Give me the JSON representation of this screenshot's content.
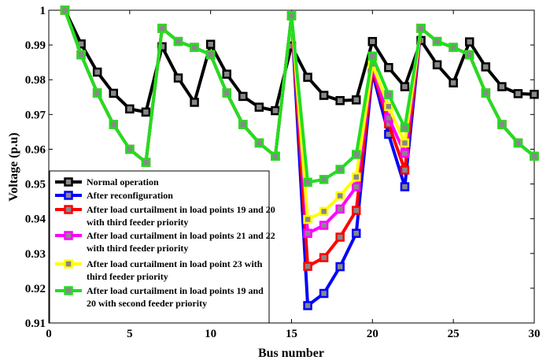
{
  "chart_data": {
    "type": "line",
    "title": "",
    "xlabel": "Bus number",
    "ylabel": "Voltage (p.u)",
    "xlim": [
      0,
      30
    ],
    "ylim": [
      0.91,
      1.0
    ],
    "xticks": [
      0,
      5,
      10,
      15,
      20,
      25,
      30
    ],
    "yticks": [
      0.91,
      0.92,
      0.93,
      0.94,
      0.95,
      0.96,
      0.97,
      0.98,
      0.99,
      1.0
    ],
    "ytick_labels": [
      "0.91",
      "0.92",
      "0.93",
      "0.94",
      "0.95",
      "0.96",
      "0.97",
      "0.98",
      "0.99",
      "1"
    ],
    "grid": false,
    "legend_position": "lower-left",
    "x": [
      1,
      2,
      3,
      4,
      5,
      6,
      7,
      8,
      9,
      10,
      11,
      12,
      13,
      14,
      15,
      16,
      17,
      18,
      19,
      20,
      21,
      22,
      23,
      24,
      25,
      26,
      27,
      28,
      29,
      30
    ],
    "series": [
      {
        "name": "Normal operation",
        "line_color": "#000000",
        "values": [
          1.0,
          0.9903,
          0.9822,
          0.9761,
          0.9716,
          0.9707,
          0.9895,
          0.9805,
          0.9735,
          0.9902,
          0.9816,
          0.9752,
          0.9721,
          0.9711,
          0.9897,
          0.9807,
          0.9755,
          0.974,
          0.9742,
          0.991,
          0.9835,
          0.978,
          0.9913,
          0.9843,
          0.9791,
          0.9909,
          0.9837,
          0.978,
          0.976,
          0.9758
        ]
      },
      {
        "name": "After reconfiguration",
        "line_color": "#0000ff",
        "values": [
          1.0,
          0.9872,
          0.9762,
          0.9671,
          0.96,
          0.9562,
          0.9948,
          0.991,
          0.9893,
          0.9872,
          0.9762,
          0.9671,
          0.9618,
          0.958,
          0.9984,
          0.915,
          0.9185,
          0.9262,
          0.9358,
          0.982,
          0.9643,
          0.9492,
          0.9948,
          0.991,
          0.9893,
          0.9872,
          0.9762,
          0.9671,
          0.9618,
          0.958
        ]
      },
      {
        "name": "After load curtailment in load points 19 and 20 with third feeder priority",
        "line_color": "#ff0000",
        "values": [
          1.0,
          0.9872,
          0.9762,
          0.9671,
          0.96,
          0.9562,
          0.9948,
          0.991,
          0.9893,
          0.9872,
          0.9762,
          0.9671,
          0.9618,
          0.958,
          0.9984,
          0.9263,
          0.9288,
          0.9347,
          0.9424,
          0.983,
          0.9673,
          0.954,
          0.9948,
          0.991,
          0.9893,
          0.9872,
          0.9762,
          0.9671,
          0.9618,
          0.958
        ]
      },
      {
        "name": "After load curtailment in load points 21 and 22 with third feeder priority",
        "line_color": "#ff00ff",
        "values": [
          1.0,
          0.9872,
          0.9762,
          0.9671,
          0.96,
          0.9562,
          0.9948,
          0.991,
          0.9893,
          0.9872,
          0.9762,
          0.9671,
          0.9618,
          0.958,
          0.9984,
          0.9358,
          0.9381,
          0.9428,
          0.9492,
          0.9838,
          0.969,
          0.9588,
          0.9948,
          0.991,
          0.9893,
          0.9872,
          0.9762,
          0.9671,
          0.9618,
          0.958
        ]
      },
      {
        "name": "After load curtailment in load point 23 with third feeder priority",
        "line_color": "#ffff00",
        "values": [
          1.0,
          0.9872,
          0.9762,
          0.9671,
          0.96,
          0.9562,
          0.9948,
          0.991,
          0.9893,
          0.9872,
          0.9762,
          0.9671,
          0.9618,
          0.958,
          0.9984,
          0.9398,
          0.9421,
          0.9466,
          0.952,
          0.9845,
          0.9723,
          0.9618,
          0.9948,
          0.991,
          0.9893,
          0.9872,
          0.9762,
          0.9671,
          0.9618,
          0.958
        ]
      },
      {
        "name": "After load curtailment in load points 19 and 20 with second feeder priority",
        "line_color": "#22dd22",
        "values": [
          1.0,
          0.9872,
          0.9762,
          0.9671,
          0.96,
          0.9562,
          0.9948,
          0.991,
          0.9893,
          0.9872,
          0.9762,
          0.9671,
          0.9618,
          0.958,
          0.9984,
          0.9505,
          0.9513,
          0.9542,
          0.9585,
          0.9868,
          0.9757,
          0.9662,
          0.9948,
          0.991,
          0.9893,
          0.9872,
          0.9762,
          0.9671,
          0.9618,
          0.958
        ]
      }
    ],
    "marker_fill": "#888888",
    "legend": [
      [
        "Normal operation"
      ],
      [
        "After reconfiguration"
      ],
      [
        "After load curtailment in load points 19 and 20",
        "with third feeder priority"
      ],
      [
        "After load curtailment in load points 21 and 22",
        "with third feeder priority"
      ],
      [
        "After load curtailment in load point 23 with",
        " third feeder priority"
      ],
      [
        "After load curtailment in load points 19 and",
        "20 with second feeder priority"
      ]
    ]
  }
}
